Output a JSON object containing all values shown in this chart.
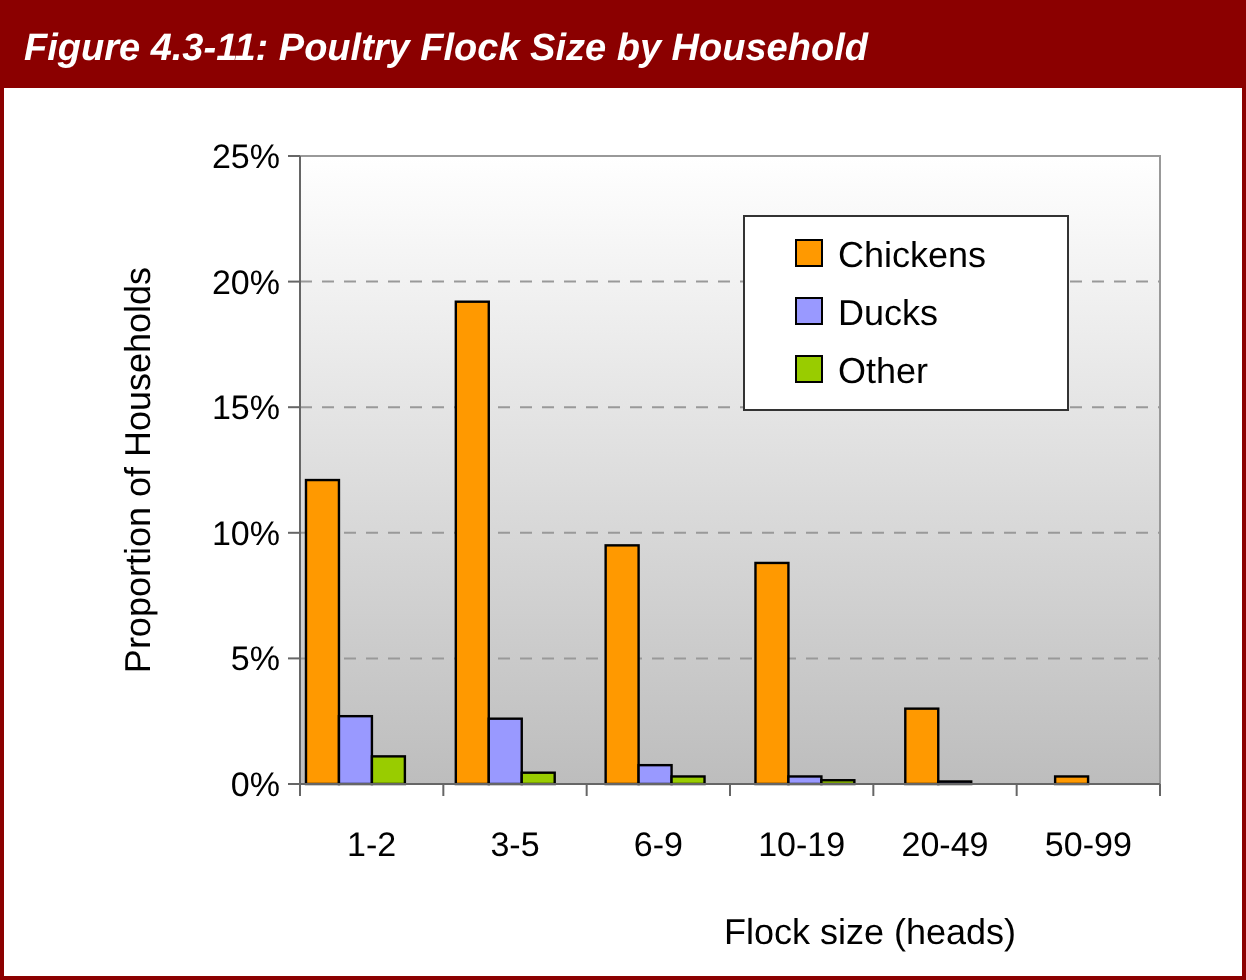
{
  "chart_data": {
    "type": "bar",
    "title": "Figure 4.3-11: Poultry Flock Size by Household",
    "xlabel": "Flock size (heads)",
    "ylabel": "Proportion of Households",
    "categories": [
      "1-2",
      "3-5",
      "6-9",
      "10-19",
      "20-49",
      "50-99"
    ],
    "series": [
      {
        "name": "Chickens",
        "color": "#ff9900",
        "values": [
          12.1,
          19.2,
          9.5,
          8.8,
          3.0,
          0.3
        ]
      },
      {
        "name": "Ducks",
        "color": "#9999ff",
        "values": [
          2.7,
          2.6,
          0.75,
          0.3,
          0.1,
          0
        ]
      },
      {
        "name": "Other",
        "color": "#99cc00",
        "values": [
          1.1,
          0.45,
          0.3,
          0.15,
          0,
          0
        ]
      }
    ],
    "ylim": [
      0,
      25
    ],
    "yticks": [
      {
        "value": 0,
        "label": "0%"
      },
      {
        "value": 5,
        "label": "5%"
      },
      {
        "value": 10,
        "label": "10%"
      },
      {
        "value": 15,
        "label": "15%"
      },
      {
        "value": 20,
        "label": "20%"
      },
      {
        "value": 25,
        "label": "25%"
      }
    ],
    "grid": "y",
    "legend": "top right"
  }
}
